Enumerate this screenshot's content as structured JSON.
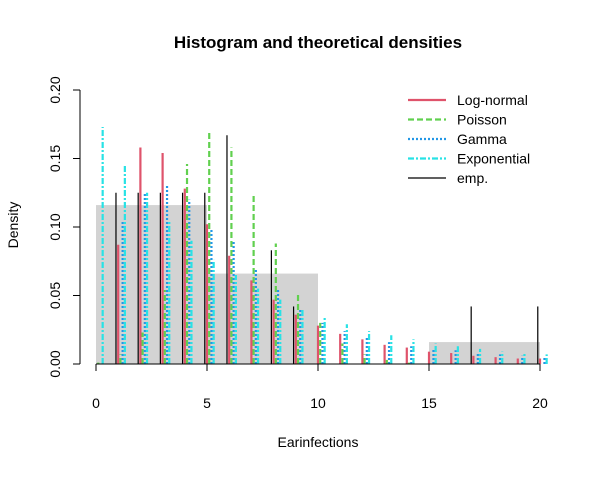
{
  "chart_data": {
    "type": "bar",
    "title": "Histogram and theoretical densities",
    "xlabel": "Earinfections",
    "ylabel": "Density",
    "xlim": [
      0,
      20
    ],
    "ylim": [
      0,
      0.2
    ],
    "x_ticks": [
      "0",
      "5",
      "10",
      "15",
      "20"
    ],
    "y_ticks": [
      "0.00",
      "0.05",
      "0.10",
      "0.15",
      "0.20"
    ],
    "histogram": {
      "name": "histogram",
      "color": "#d3d3d3",
      "bins": [
        {
          "from": 0,
          "to": 5,
          "density": 0.116
        },
        {
          "from": 5,
          "to": 10,
          "density": 0.066
        },
        {
          "from": 10,
          "to": 15,
          "density": 0.0
        },
        {
          "from": 15,
          "to": 20,
          "density": 0.016
        }
      ]
    },
    "series": [
      {
        "name": "Log-normal",
        "color": "#df536b",
        "style": "solid",
        "offset": 0.0,
        "x": [
          1,
          2,
          3,
          4,
          5,
          6,
          7,
          8,
          9,
          10,
          11,
          12,
          13,
          14,
          15,
          16,
          17,
          18,
          19,
          20
        ],
        "values": [
          0.087,
          0.158,
          0.154,
          0.128,
          0.102,
          0.079,
          0.061,
          0.047,
          0.036,
          0.028,
          0.022,
          0.018,
          0.014,
          0.012,
          0.009,
          0.008,
          0.006,
          0.005,
          0.004,
          0.004
        ]
      },
      {
        "name": "Poisson",
        "color": "#61d04f",
        "style": "dashed",
        "offset": 0.1,
        "x": [
          0,
          1,
          2,
          3,
          4,
          5,
          6,
          7,
          8,
          9,
          10,
          11,
          12,
          13,
          14,
          15,
          16,
          17,
          18,
          19,
          20
        ],
        "values": [
          0.001,
          0.007,
          0.023,
          0.054,
          0.146,
          0.169,
          0.158,
          0.123,
          0.088,
          0.052,
          0.03,
          0.015,
          0.007,
          0.003,
          0.001,
          0.0,
          0.0,
          0.0,
          0.0,
          0.0,
          0.0
        ]
      },
      {
        "name": "Gamma",
        "color": "#2297e6",
        "style": "dotted",
        "offset": 0.2,
        "x": [
          1,
          2,
          3,
          4,
          5,
          6,
          7,
          8,
          9,
          10,
          11,
          12,
          13,
          14,
          15,
          16,
          17,
          18,
          19,
          20
        ],
        "values": [
          0.105,
          0.125,
          0.13,
          0.12,
          0.098,
          0.09,
          0.07,
          0.055,
          0.04,
          0.03,
          0.024,
          0.019,
          0.016,
          0.013,
          0.011,
          0.01,
          0.008,
          0.007,
          0.006,
          0.005
        ]
      },
      {
        "name": "Exponential",
        "color": "#28e2e5",
        "style": "dashdot",
        "offset": 0.3,
        "x": [
          0,
          1,
          2,
          3,
          4,
          5,
          6,
          7,
          8,
          9,
          10,
          11,
          12,
          13,
          14,
          15,
          16,
          17,
          18,
          19,
          20
        ],
        "values": [
          0.173,
          0.146,
          0.125,
          0.105,
          0.09,
          0.076,
          0.065,
          0.055,
          0.047,
          0.04,
          0.034,
          0.029,
          0.024,
          0.021,
          0.018,
          0.015,
          0.013,
          0.011,
          0.009,
          0.008,
          0.007
        ]
      },
      {
        "name": "emp.",
        "color": "#000000",
        "style": "solid",
        "offset": -0.1,
        "x": [
          1,
          2,
          3,
          4,
          5,
          6,
          7,
          8,
          9,
          10,
          11,
          12,
          13,
          14,
          15,
          16,
          17,
          18,
          19,
          20
        ],
        "values": [
          0.125,
          0.125,
          0.125,
          0.125,
          0.125,
          0.167,
          0.0,
          0.083,
          0.042,
          0.0,
          0.0,
          0.0,
          0.0,
          0.0,
          0.0,
          0.0,
          0.042,
          0.0,
          0.0,
          0.042
        ]
      }
    ],
    "legend": {
      "position": "top-right",
      "entries": [
        "Log-normal",
        "Poisson",
        "Gamma",
        "Exponential",
        "emp."
      ]
    },
    "grid": false
  }
}
